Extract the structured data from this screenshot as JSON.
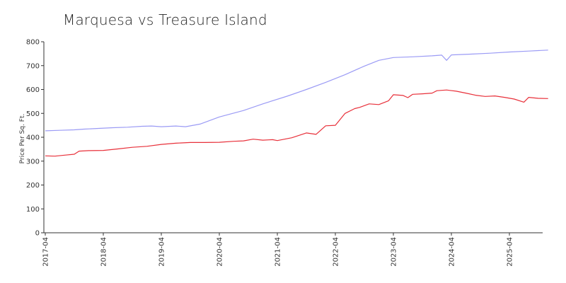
{
  "chart_data": {
    "type": "line",
    "title": "Marquesa vs Treasure Island",
    "xlabel": "",
    "ylabel": "Price Per Sq. Ft.",
    "ylim": [
      0,
      800
    ],
    "yticks": [
      0,
      100,
      200,
      300,
      400,
      500,
      600,
      700,
      800
    ],
    "xticks": [
      "2017-04",
      "2018-04",
      "2019-04",
      "2020-04",
      "2021-04",
      "2022-04",
      "2023-04",
      "2024-04",
      "2025-04"
    ],
    "grid": false,
    "colors": {
      "series_blue": "#9b9bf5",
      "series_red": "#e8303a"
    },
    "x_range": [
      "2017-04",
      "2025-12"
    ],
    "series": [
      {
        "color": "#9b9bf5",
        "points": [
          [
            "2017-04",
            427
          ],
          [
            "2017-07",
            429
          ],
          [
            "2017-10",
            431
          ],
          [
            "2017-12",
            434
          ],
          [
            "2018-03",
            437
          ],
          [
            "2018-06",
            440
          ],
          [
            "2018-09",
            442
          ],
          [
            "2018-12",
            446
          ],
          [
            "2019-02",
            447
          ],
          [
            "2019-04",
            444
          ],
          [
            "2019-07",
            447
          ],
          [
            "2019-09",
            444
          ],
          [
            "2019-12",
            455
          ],
          [
            "2020-04",
            485
          ],
          [
            "2020-09",
            512
          ],
          [
            "2021-01",
            540
          ],
          [
            "2021-06",
            572
          ],
          [
            "2021-10",
            600
          ],
          [
            "2022-02",
            630
          ],
          [
            "2022-06",
            662
          ],
          [
            "2022-10",
            698
          ],
          [
            "2023-01",
            722
          ],
          [
            "2023-04",
            734
          ],
          [
            "2023-08",
            737
          ],
          [
            "2023-12",
            741
          ],
          [
            "2024-02",
            744
          ],
          [
            "2024-03",
            722
          ],
          [
            "2024-04",
            745
          ],
          [
            "2024-08",
            748
          ],
          [
            "2024-12",
            752
          ],
          [
            "2025-04",
            757
          ],
          [
            "2025-08",
            761
          ],
          [
            "2025-12",
            765
          ]
        ]
      },
      {
        "color": "#e8303a",
        "points": [
          [
            "2017-04",
            322
          ],
          [
            "2017-06",
            321
          ],
          [
            "2017-08",
            325
          ],
          [
            "2017-10",
            329
          ],
          [
            "2017-11",
            342
          ],
          [
            "2018-01",
            344
          ],
          [
            "2018-04",
            345
          ],
          [
            "2018-07",
            351
          ],
          [
            "2018-10",
            358
          ],
          [
            "2019-01",
            362
          ],
          [
            "2019-04",
            370
          ],
          [
            "2019-07",
            375
          ],
          [
            "2019-10",
            378
          ],
          [
            "2020-01",
            378
          ],
          [
            "2020-04",
            379
          ],
          [
            "2020-07",
            383
          ],
          [
            "2020-09",
            385
          ],
          [
            "2020-11",
            392
          ],
          [
            "2021-01",
            388
          ],
          [
            "2021-03",
            390
          ],
          [
            "2021-04",
            386
          ],
          [
            "2021-07",
            398
          ],
          [
            "2021-10",
            418
          ],
          [
            "2021-12",
            412
          ],
          [
            "2022-02",
            448
          ],
          [
            "2022-04",
            450
          ],
          [
            "2022-06",
            500
          ],
          [
            "2022-08",
            520
          ],
          [
            "2022-09",
            525
          ],
          [
            "2022-11",
            540
          ],
          [
            "2023-01",
            537
          ],
          [
            "2023-03",
            553
          ],
          [
            "2023-04",
            578
          ],
          [
            "2023-06",
            575
          ],
          [
            "2023-07",
            566
          ],
          [
            "2023-08",
            580
          ],
          [
            "2023-10",
            582
          ],
          [
            "2023-12",
            585
          ],
          [
            "2024-01",
            595
          ],
          [
            "2024-03",
            598
          ],
          [
            "2024-05",
            593
          ],
          [
            "2024-07",
            585
          ],
          [
            "2024-09",
            576
          ],
          [
            "2024-11",
            571
          ],
          [
            "2025-01",
            573
          ],
          [
            "2025-03",
            567
          ],
          [
            "2025-05",
            560
          ],
          [
            "2025-07",
            547
          ],
          [
            "2025-08",
            567
          ],
          [
            "2025-10",
            563
          ],
          [
            "2025-12",
            562
          ]
        ]
      }
    ]
  }
}
